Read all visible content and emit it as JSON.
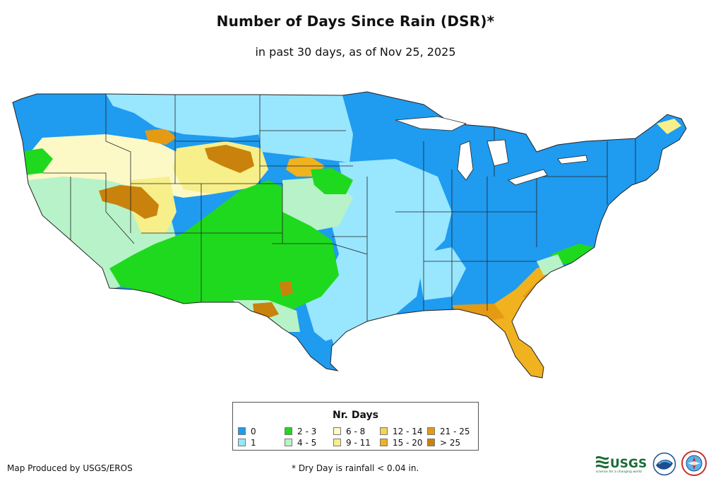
{
  "header": {
    "title": "Number of Days Since Rain (DSR)*",
    "subtitle": "in past 30 days, as of Nov 25, 2025"
  },
  "legend": {
    "title": "Nr. Days",
    "items": [
      {
        "label": "0",
        "color": "#1f9bf0"
      },
      {
        "label": "1",
        "color": "#99e6ff"
      },
      {
        "label": "2 - 3",
        "color": "#1fd91f"
      },
      {
        "label": "4 - 5",
        "color": "#b8f2c8"
      },
      {
        "label": "6 - 8",
        "color": "#fcf9c7"
      },
      {
        "label": "9 - 11",
        "color": "#f7ef8a"
      },
      {
        "label": "12 - 14",
        "color": "#f2d35c"
      },
      {
        "label": "15 - 20",
        "color": "#f0b21f"
      },
      {
        "label": "21 - 25",
        "color": "#e59a14"
      },
      {
        "label": "> 25",
        "color": "#c9820c"
      }
    ]
  },
  "footer": {
    "credit": "Map Produced by USGS/EROS",
    "note": "* Dry Day is rainfall < 0.04 in."
  },
  "logos": {
    "usgs_text": "USGS",
    "usgs_tagline": "science for a changing world"
  }
}
